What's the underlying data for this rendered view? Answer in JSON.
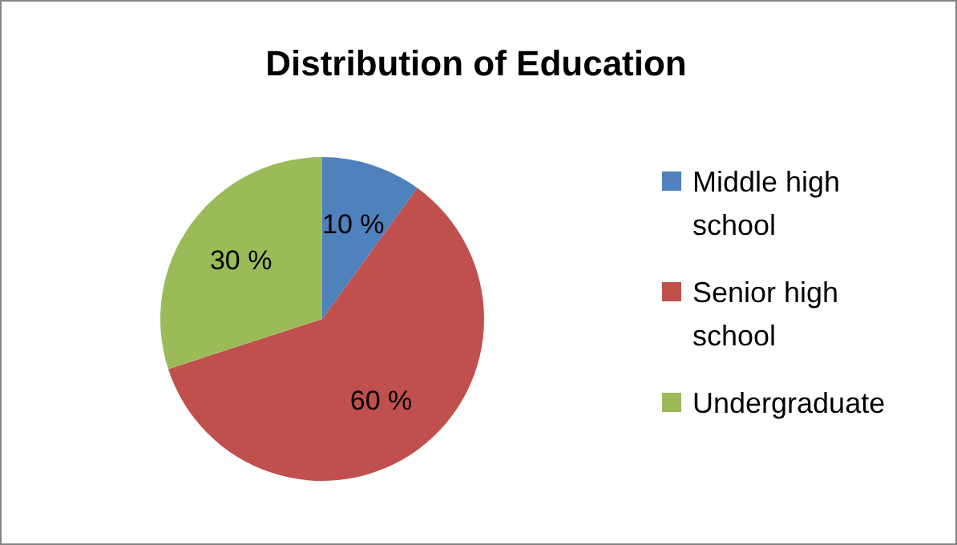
{
  "chart_data": {
    "type": "pie",
    "title": "Distribution of Education",
    "categories": [
      "Middle high school",
      "Senior high school",
      "Undergraduate"
    ],
    "values": [
      10,
      60,
      30
    ],
    "colors": [
      "#4f81bd",
      "#c0504d",
      "#9bbb59"
    ],
    "value_labels": [
      "10 %",
      "60 %",
      "30 %"
    ],
    "legend": "right"
  }
}
